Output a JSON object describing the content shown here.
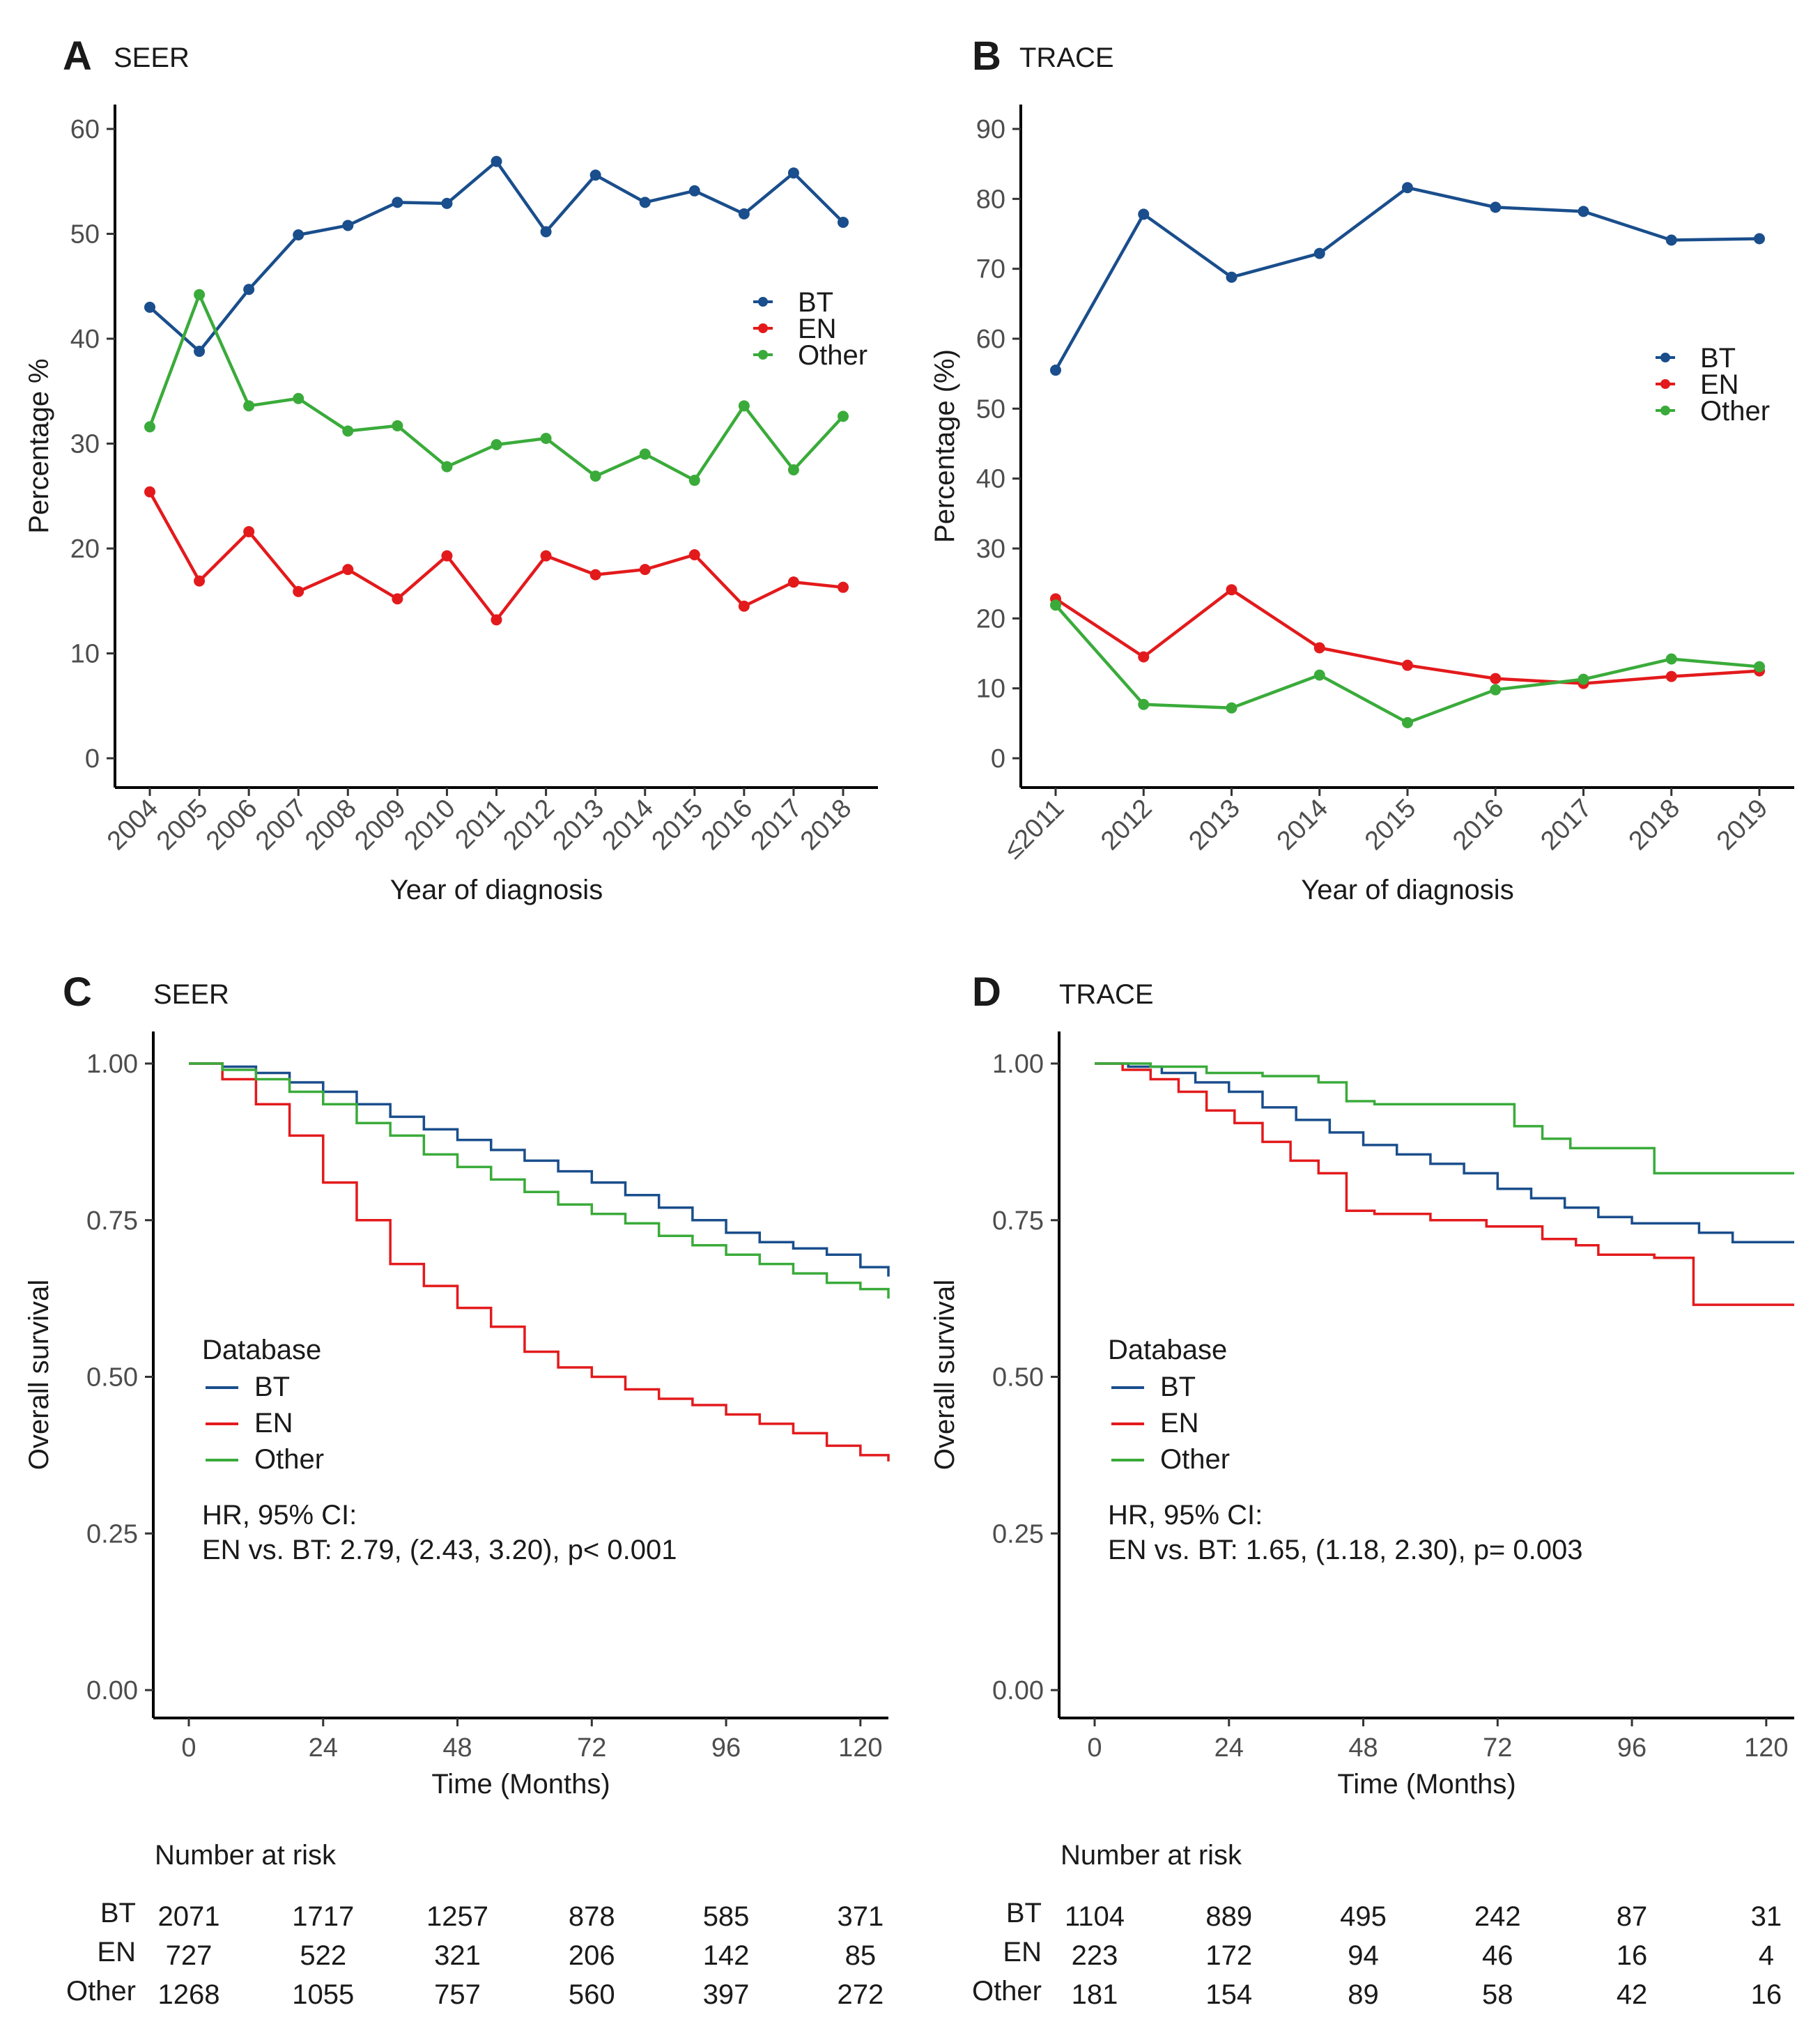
{
  "figure": {
    "colors": {
      "BT": "#1a4e8c",
      "EN": "#e31a1c",
      "Other": "#3aab3a"
    }
  },
  "chart_data": [
    {
      "panel": "A",
      "title": "SEER",
      "type": "line",
      "xlabel": "Year of diagnosis",
      "ylabel": "Percentage %",
      "ylim": [
        0,
        60
      ],
      "yticks": [
        0,
        10,
        20,
        30,
        40,
        50,
        60
      ],
      "categories": [
        "2004",
        "2005",
        "2006",
        "2007",
        "2008",
        "2009",
        "2010",
        "2011",
        "2012",
        "2013",
        "2014",
        "2015",
        "2016",
        "2017",
        "2018"
      ],
      "legend": [
        "BT",
        "EN",
        "Other"
      ],
      "series": [
        {
          "name": "BT",
          "values": [
            43.0,
            38.8,
            44.7,
            49.9,
            50.8,
            53.0,
            52.9,
            56.9,
            50.2,
            55.6,
            53.0,
            54.1,
            51.9,
            55.8,
            51.1
          ]
        },
        {
          "name": "EN",
          "values": [
            25.4,
            16.9,
            21.6,
            15.9,
            18.0,
            15.2,
            19.3,
            13.2,
            19.3,
            17.5,
            18.0,
            19.4,
            14.5,
            16.8,
            16.3
          ]
        },
        {
          "name": "Other",
          "values": [
            31.6,
            44.2,
            33.6,
            34.3,
            31.2,
            31.7,
            27.8,
            29.9,
            30.5,
            26.9,
            29.0,
            26.5,
            33.6,
            27.5,
            32.6
          ]
        }
      ]
    },
    {
      "panel": "B",
      "title": "TRACE",
      "type": "line",
      "xlabel": "Year of diagnosis",
      "ylabel": "Percentage (%)",
      "ylim": [
        0,
        90
      ],
      "yticks": [
        0,
        10,
        20,
        30,
        40,
        50,
        60,
        70,
        80,
        90
      ],
      "categories": [
        "≤2011",
        "2012",
        "2013",
        "2014",
        "2015",
        "2016",
        "2017",
        "2018",
        "2019"
      ],
      "legend": [
        "BT",
        "EN",
        "Other"
      ],
      "series": [
        {
          "name": "BT",
          "values": [
            55.5,
            77.8,
            68.8,
            72.2,
            81.6,
            78.8,
            78.2,
            74.1,
            74.3
          ]
        },
        {
          "name": "EN",
          "values": [
            22.8,
            14.5,
            24.1,
            15.8,
            13.3,
            11.4,
            10.7,
            11.7,
            12.5
          ]
        },
        {
          "name": "Other",
          "values": [
            21.9,
            7.7,
            7.2,
            11.9,
            5.1,
            9.8,
            11.3,
            14.2,
            13.1
          ]
        }
      ]
    },
    {
      "panel": "C",
      "title": "SEER",
      "type": "line",
      "subtype": "kaplan-meier",
      "xlabel": "Time (Months)",
      "ylabel": "Overall survival",
      "xlim": [
        0,
        125
      ],
      "xticks": [
        0,
        24,
        48,
        72,
        96,
        120
      ],
      "ylim": [
        0,
        1
      ],
      "yticks": [
        "0.00",
        "0.25",
        "0.50",
        "0.75",
        "1.00"
      ],
      "legend_title": "Database",
      "legend": [
        "BT",
        "EN",
        "Other"
      ],
      "annotation": [
        "HR, 95% CI:",
        "EN vs. BT: 2.79, (2.43, 3.20), p< 0.001"
      ],
      "series": [
        {
          "name": "BT",
          "x": [
            0,
            6,
            12,
            18,
            24,
            30,
            36,
            42,
            48,
            54,
            60,
            66,
            72,
            78,
            84,
            90,
            96,
            102,
            108,
            114,
            120,
            125
          ],
          "y": [
            1.0,
            0.995,
            0.985,
            0.97,
            0.955,
            0.935,
            0.915,
            0.895,
            0.878,
            0.862,
            0.845,
            0.828,
            0.81,
            0.79,
            0.77,
            0.75,
            0.73,
            0.715,
            0.705,
            0.695,
            0.675,
            0.66
          ]
        },
        {
          "name": "EN",
          "x": [
            0,
            6,
            12,
            18,
            24,
            30,
            36,
            42,
            48,
            54,
            60,
            66,
            72,
            78,
            84,
            90,
            96,
            102,
            108,
            114,
            120,
            125
          ],
          "y": [
            1.0,
            0.975,
            0.935,
            0.885,
            0.81,
            0.75,
            0.68,
            0.645,
            0.61,
            0.58,
            0.54,
            0.515,
            0.5,
            0.48,
            0.465,
            0.455,
            0.44,
            0.425,
            0.41,
            0.39,
            0.375,
            0.365
          ]
        },
        {
          "name": "Other",
          "x": [
            0,
            6,
            12,
            18,
            24,
            30,
            36,
            42,
            48,
            54,
            60,
            66,
            72,
            78,
            84,
            90,
            96,
            102,
            108,
            114,
            120,
            125
          ],
          "y": [
            1.0,
            0.99,
            0.975,
            0.955,
            0.935,
            0.905,
            0.885,
            0.855,
            0.835,
            0.815,
            0.795,
            0.775,
            0.76,
            0.745,
            0.725,
            0.71,
            0.695,
            0.68,
            0.665,
            0.65,
            0.64,
            0.625
          ]
        }
      ],
      "risk_table": {
        "title": "Number at risk",
        "rows": [
          {
            "name": "BT",
            "counts": [
              "2071",
              "1717",
              "1257",
              "878",
              "585",
              "371"
            ]
          },
          {
            "name": "EN",
            "counts": [
              "727",
              "522",
              "321",
              "206",
              "142",
              "85"
            ]
          },
          {
            "name": "Other",
            "counts": [
              "1268",
              "1055",
              "757",
              "560",
              "397",
              "272"
            ]
          }
        ]
      }
    },
    {
      "panel": "D",
      "title": "TRACE",
      "type": "line",
      "subtype": "kaplan-meier",
      "xlabel": "Time (Months)",
      "ylabel": "Overall survival",
      "xlim": [
        0,
        125
      ],
      "xticks": [
        0,
        24,
        48,
        72,
        96,
        120
      ],
      "ylim": [
        0,
        1
      ],
      "yticks": [
        "0.00",
        "0.25",
        "0.50",
        "0.75",
        "1.00"
      ],
      "legend_title": "Database",
      "legend": [
        "BT",
        "EN",
        "Other"
      ],
      "annotation": [
        "HR, 95% CI:",
        "EN vs. BT: 1.65, (1.18, 2.30), p= 0.003"
      ],
      "series": [
        {
          "name": "BT",
          "x": [
            0,
            6,
            12,
            18,
            24,
            30,
            36,
            42,
            48,
            54,
            60,
            66,
            72,
            78,
            84,
            90,
            96,
            102,
            108,
            114,
            120,
            125
          ],
          "y": [
            1.0,
            0.995,
            0.985,
            0.97,
            0.955,
            0.93,
            0.91,
            0.89,
            0.87,
            0.855,
            0.84,
            0.825,
            0.8,
            0.785,
            0.77,
            0.755,
            0.745,
            0.745,
            0.73,
            0.715,
            0.715,
            0.715
          ]
        },
        {
          "name": "EN",
          "x": [
            0,
            5,
            10,
            15,
            20,
            25,
            30,
            35,
            40,
            45,
            50,
            60,
            70,
            80,
            86,
            90,
            100,
            107,
            115,
            125
          ],
          "y": [
            1.0,
            0.99,
            0.975,
            0.955,
            0.925,
            0.905,
            0.875,
            0.845,
            0.825,
            0.765,
            0.76,
            0.75,
            0.74,
            0.72,
            0.71,
            0.695,
            0.69,
            0.615,
            0.615,
            0.615
          ]
        },
        {
          "name": "Other",
          "x": [
            0,
            10,
            20,
            30,
            40,
            45,
            50,
            60,
            70,
            75,
            80,
            85,
            95,
            100,
            110,
            125
          ],
          "y": [
            1.0,
            0.995,
            0.985,
            0.98,
            0.97,
            0.94,
            0.935,
            0.935,
            0.935,
            0.9,
            0.88,
            0.865,
            0.865,
            0.825,
            0.825,
            0.825
          ]
        }
      ],
      "risk_table": {
        "title": "Number at risk",
        "rows": [
          {
            "name": "BT",
            "counts": [
              "1104",
              "889",
              "495",
              "242",
              "87",
              "31"
            ]
          },
          {
            "name": "EN",
            "counts": [
              "223",
              "172",
              "94",
              "46",
              "16",
              "4"
            ]
          },
          {
            "name": "Other",
            "counts": [
              "181",
              "154",
              "89",
              "58",
              "42",
              "16"
            ]
          }
        ]
      }
    }
  ]
}
